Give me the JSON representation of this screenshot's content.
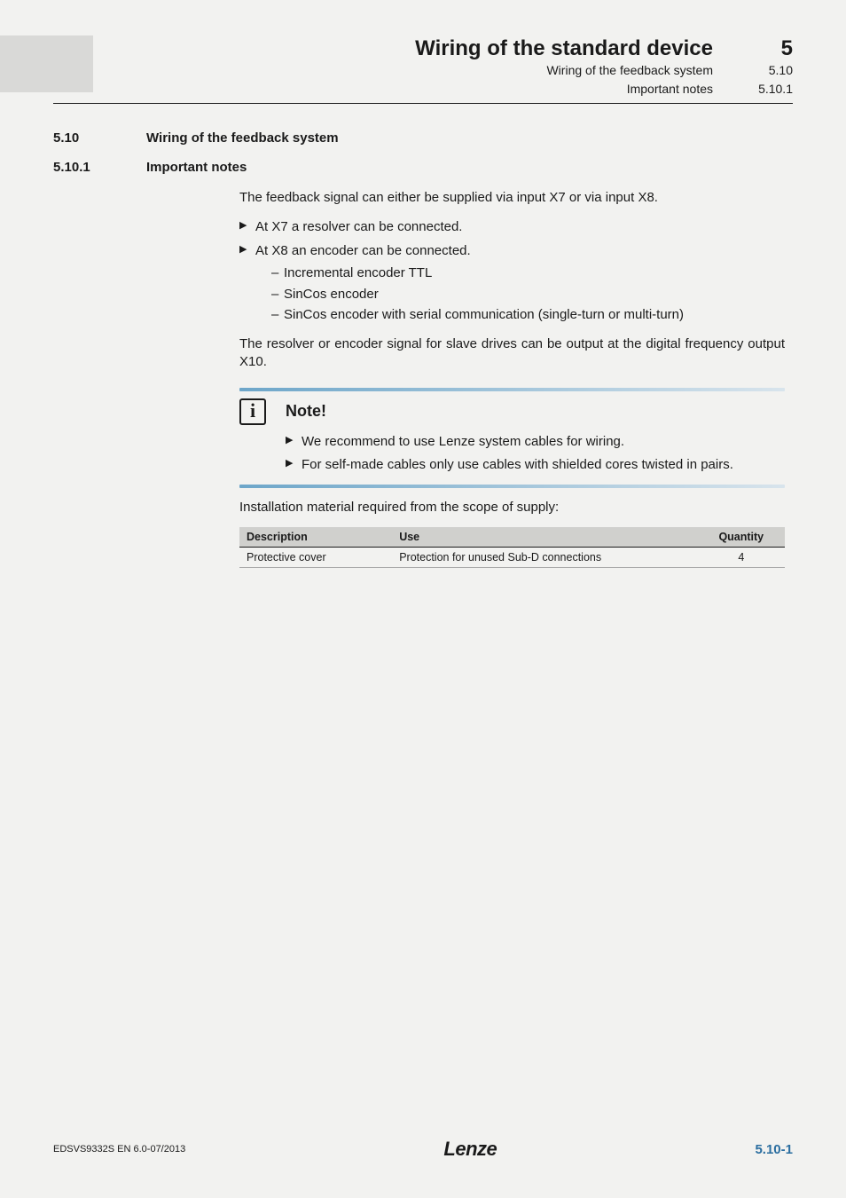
{
  "header": {
    "title": "Wiring of the standard device",
    "sub1": "Wiring of the feedback system",
    "sub2": "Important notes",
    "num_big": "5",
    "num_mid": "5.10",
    "num_small": "5.10.1"
  },
  "section1": {
    "num": "5.10",
    "title": "Wiring of the feedback system"
  },
  "section2": {
    "num": "5.10.1",
    "title": "Important notes"
  },
  "intro": "The feedback signal can either be supplied via input X7 or via input X8.",
  "bullets": {
    "b1": "At X7 a resolver can be connected.",
    "b2": "At X8 an encoder can be connected.",
    "b2_sub": {
      "s1": "Incremental encoder TTL",
      "s2": "SinCos encoder",
      "s3": "SinCos encoder with serial communication (single-turn or multi-turn)"
    }
  },
  "resolver_para": "The resolver or encoder signal for slave drives can be output at the digital frequency output X10.",
  "note": {
    "icon_glyph": "i",
    "title": "Note!",
    "b1": "We recommend to use Lenze system cables for wiring.",
    "b2": "For self-made cables only use cables with shielded cores twisted in pairs."
  },
  "install_line": "Installation material required from the scope of supply:",
  "table": {
    "headers": {
      "desc": "Description",
      "use": "Use",
      "qty": "Quantity"
    },
    "row1": {
      "desc": "Protective cover",
      "use": "Protection for unused Sub-D connections",
      "qty": "4"
    }
  },
  "footer": {
    "left": "EDSVS9332S  EN  6.0-07/2013",
    "logo": "Lenze",
    "right": "5.10-1"
  },
  "colors": {
    "bar_gray": "#d9d9d7",
    "table_head": "#d0d0cd",
    "note_grad_from": "#6da6c9",
    "note_grad_to": "#d8e4ec",
    "page_num": "#2b6ea0"
  }
}
